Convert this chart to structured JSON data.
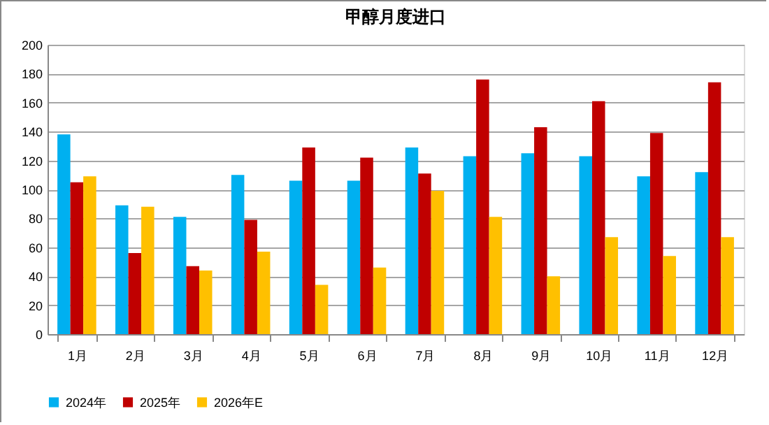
{
  "chart_data": {
    "type": "bar",
    "title": "甲醇月度进口",
    "categories": [
      "1月",
      "2月",
      "3月",
      "4月",
      "5月",
      "6月",
      "7月",
      "8月",
      "9月",
      "10月",
      "11月",
      "12月"
    ],
    "series": [
      {
        "name": "2024年",
        "color": "#00b0f0",
        "values": [
          138,
          89,
          81,
          110,
          106,
          106,
          129,
          123,
          125,
          123,
          109,
          112
        ]
      },
      {
        "name": "2025年",
        "color": "#c00000",
        "values": [
          105,
          56,
          47,
          79,
          129,
          122,
          111,
          176,
          143,
          161,
          139,
          174
        ]
      },
      {
        "name": "2026年E",
        "color": "#ffc000",
        "values": [
          109,
          88,
          44,
          57,
          34,
          46,
          99,
          81,
          40,
          67,
          54,
          67
        ]
      }
    ],
    "ylim": [
      0,
      200
    ],
    "yticks": [
      0,
      20,
      40,
      60,
      80,
      100,
      120,
      140,
      160,
      180,
      200
    ],
    "grid": "y",
    "legend": "bottom"
  }
}
